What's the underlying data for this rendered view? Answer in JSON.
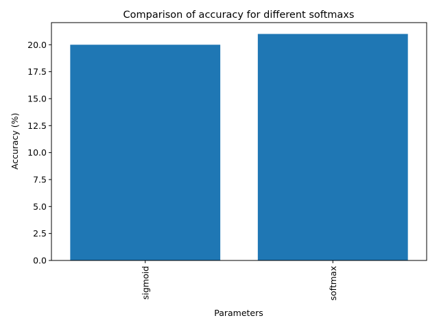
{
  "chart_data": {
    "type": "bar",
    "title": "Comparison of accuracy for different softmaxs",
    "xlabel": "Parameters",
    "ylabel": "Accuracy (%)",
    "categories": [
      "sigmoid",
      "softmax"
    ],
    "values": [
      20.0,
      21.0
    ],
    "ylim": [
      0,
      22.05
    ],
    "yticks": [
      "0.0",
      "2.5",
      "5.0",
      "7.5",
      "10.0",
      "12.5",
      "15.0",
      "17.5",
      "20.0"
    ],
    "xtick_rotation": "vertical",
    "bar_color": "#1f77b4",
    "grid": false,
    "legend": "none"
  }
}
